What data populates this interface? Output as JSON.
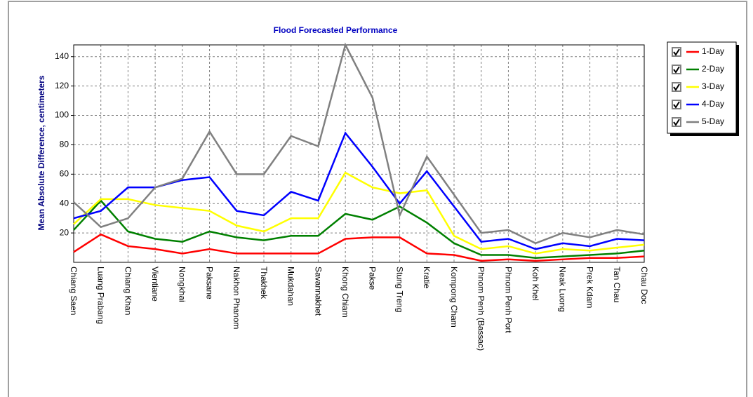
{
  "chart_data": {
    "type": "line",
    "title": "Flood Forecasted Performance",
    "y_label": "Mean Absolute Difference, centimeters",
    "categories": [
      "Chiang Saen",
      "Luang Prabang",
      "Chiang Khan",
      "Vientiane",
      "Nongkhai",
      "Paksane",
      "Nakhon Phanom",
      "Thakhek",
      "Mukdahan",
      "Savannakhet",
      "Khong Chiam",
      "Pakse",
      "Stung Treng",
      "Kratie",
      "Kompong Cham",
      "Phnom Penh (Bassac)",
      "Phnom Penh Port",
      "Koh Khel",
      "Neak Luong",
      "Prek Kdam",
      "Tan Chau",
      "Chau Doc"
    ],
    "series": [
      {
        "name": "1-Day",
        "color": "#ff0000",
        "values": [
          7,
          19,
          11,
          9,
          6,
          9,
          6,
          6,
          6,
          6,
          16,
          17,
          17,
          6,
          5,
          1,
          2,
          1,
          2,
          3,
          3,
          4
        ]
      },
      {
        "name": "2-Day",
        "color": "#008000",
        "values": [
          22,
          42,
          21,
          16,
          14,
          21,
          17,
          15,
          18,
          18,
          33,
          29,
          38,
          27,
          13,
          5,
          5,
          3,
          4,
          5,
          6,
          8
        ]
      },
      {
        "name": "3-Day",
        "color": "#ffff00",
        "values": [
          26,
          43,
          43,
          39,
          37,
          35,
          25,
          21,
          30,
          30,
          61,
          51,
          47,
          49,
          18,
          9,
          11,
          6,
          9,
          8,
          10,
          12
        ]
      },
      {
        "name": "4-Day",
        "color": "#0000ff",
        "values": [
          30,
          35,
          51,
          51,
          56,
          58,
          35,
          32,
          48,
          42,
          88,
          65,
          40,
          62,
          38,
          14,
          16,
          9,
          13,
          11,
          16,
          15
        ]
      },
      {
        "name": "5-Day",
        "color": "#808080",
        "values": [
          41,
          24,
          30,
          51,
          57,
          89,
          60,
          60,
          86,
          79,
          148,
          112,
          32,
          72,
          46,
          20,
          22,
          13,
          20,
          17,
          22,
          19
        ]
      }
    ],
    "ylim": [
      0,
      148
    ],
    "yticks": [
      20,
      40,
      60,
      80,
      100,
      120,
      140
    ],
    "grid": true
  }
}
